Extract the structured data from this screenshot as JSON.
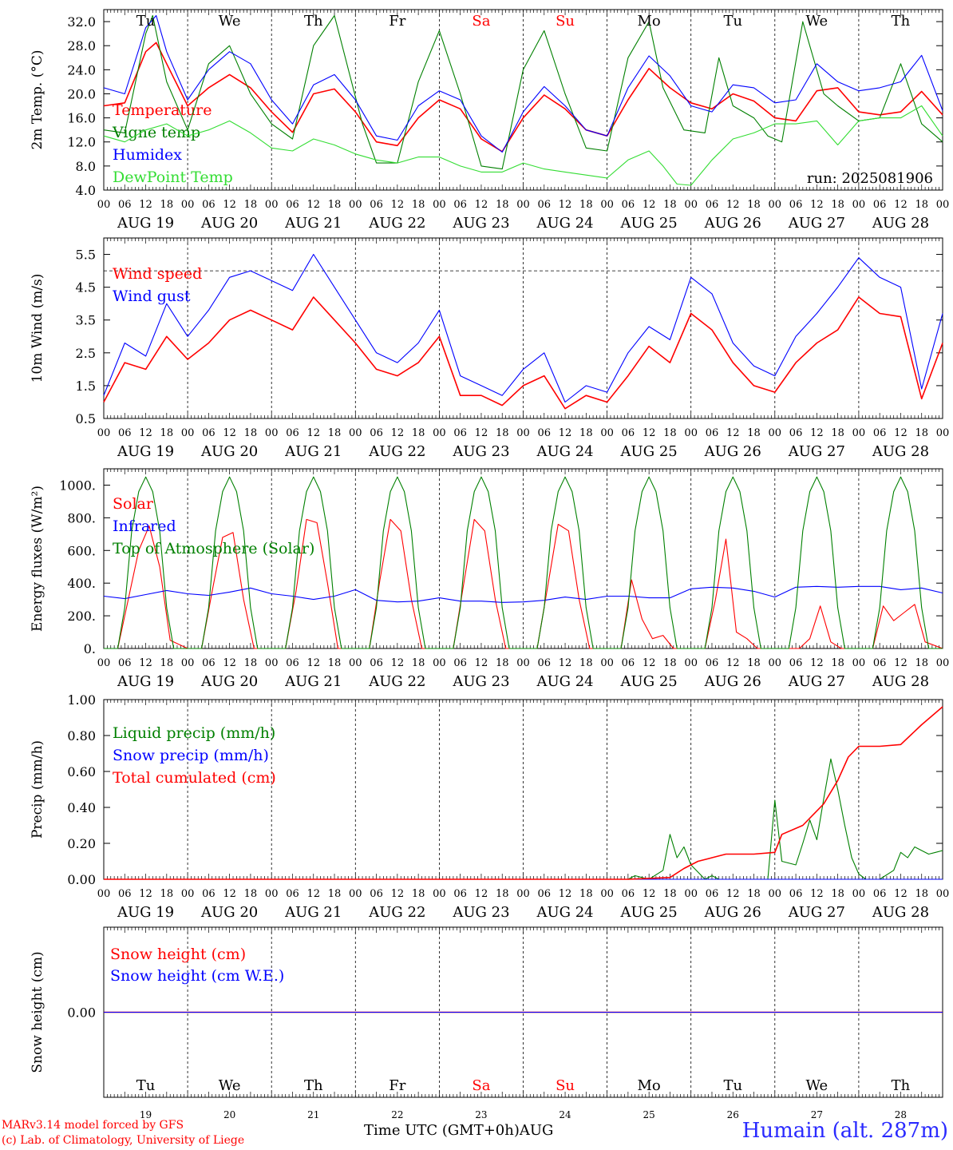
{
  "days": [
    {
      "abbr": "Tu",
      "date": "AUG 19",
      "num": "19",
      "weekend": false
    },
    {
      "abbr": "We",
      "date": "AUG 20",
      "num": "20",
      "weekend": false
    },
    {
      "abbr": "Th",
      "date": "AUG 21",
      "num": "21",
      "weekend": false
    },
    {
      "abbr": "Fr",
      "date": "AUG 22",
      "num": "22",
      "weekend": false
    },
    {
      "abbr": "Sa",
      "date": "AUG 23",
      "num": "23",
      "weekend": true
    },
    {
      "abbr": "Su",
      "date": "AUG 24",
      "num": "24",
      "weekend": true
    },
    {
      "abbr": "Mo",
      "date": "AUG 25",
      "num": "25",
      "weekend": false
    },
    {
      "abbr": "Tu",
      "date": "AUG 26",
      "num": "26",
      "weekend": false
    },
    {
      "abbr": "We",
      "date": "AUG 27",
      "num": "27",
      "weekend": false
    },
    {
      "abbr": "Th",
      "date": "AUG 28",
      "num": "28",
      "weekend": false
    }
  ],
  "hour_ticks": [
    "00",
    "06",
    "12",
    "18"
  ],
  "end_tick": "00",
  "colors": {
    "red": "#ff0000",
    "green": "#008000",
    "blue": "#0000ff",
    "lightgreen": "#33dd33",
    "axis": "#000000"
  },
  "footer": {
    "credit_line1": "MARv3.14 model forced by GFS",
    "credit_line2": "(c) Lab. of Climatology, University of Liege",
    "time_label": "Time UTC (GMT+0h)",
    "month": "AUG",
    "station": "Humain (alt. 287m)"
  },
  "chart_data": [
    {
      "type": "line",
      "ylabel": "2m Temp. (°C)",
      "yticks": [
        "4.0",
        "8.0",
        "12.0",
        "16.0",
        "20.0",
        "24.0",
        "28.0",
        "32.0"
      ],
      "ylim": [
        4,
        34
      ],
      "annotation": "run: 2025081906",
      "day_labels_inside": true,
      "x_unit": "hours since AUG 19 00 UTC",
      "series": [
        {
          "name": "Temperature",
          "color": "red",
          "x": [
            0,
            6,
            12,
            15,
            18,
            24,
            30,
            36,
            42,
            48,
            54,
            60,
            66,
            72,
            78,
            84,
            90,
            96,
            102,
            108,
            114,
            120,
            126,
            132,
            138,
            144,
            150,
            156,
            162,
            168,
            174,
            180,
            186,
            192,
            198,
            204,
            210,
            216,
            222,
            228,
            234,
            240
          ],
          "y": [
            18,
            18.5,
            27,
            28.5,
            25,
            18,
            21,
            23.2,
            21,
            17,
            13.6,
            20,
            20.8,
            17,
            12,
            11.4,
            16,
            19,
            17.5,
            12.5,
            10.4,
            16,
            19.8,
            17.5,
            14,
            13,
            19,
            24.2,
            21,
            18.5,
            17.5,
            20,
            18.8,
            16,
            15.5,
            20.5,
            21,
            17,
            16.5,
            17,
            20.4,
            16.5
          ]
        },
        {
          "name": "Vigne temp",
          "color": "green",
          "x": [
            0,
            6,
            12,
            14,
            18,
            24,
            30,
            36,
            42,
            48,
            54,
            60,
            66,
            70,
            74,
            78,
            84,
            90,
            96,
            102,
            108,
            114,
            120,
            126,
            132,
            138,
            144,
            150,
            156,
            160,
            166,
            172,
            176,
            180,
            186,
            190,
            194,
            200,
            206,
            210,
            216,
            222,
            228,
            234,
            240
          ],
          "y": [
            14,
            13.5,
            30,
            33,
            22,
            14,
            25,
            28,
            20,
            15,
            12.5,
            28,
            33,
            24,
            15,
            8.5,
            8.5,
            22,
            30.5,
            20,
            8,
            7.5,
            24,
            30.5,
            20,
            11,
            10.5,
            26,
            32,
            21,
            14,
            13.5,
            26,
            18,
            16,
            13,
            12,
            32,
            20,
            18,
            15.5,
            16,
            25,
            15,
            12
          ]
        },
        {
          "name": "Humidex",
          "color": "blue",
          "x": [
            0,
            6,
            12,
            15,
            18,
            24,
            30,
            36,
            42,
            48,
            54,
            60,
            66,
            72,
            78,
            84,
            90,
            96,
            102,
            108,
            114,
            120,
            126,
            132,
            138,
            144,
            150,
            156,
            162,
            168,
            174,
            180,
            186,
            192,
            198,
            204,
            210,
            216,
            222,
            228,
            234,
            240
          ],
          "y": [
            21,
            20,
            31,
            33,
            27,
            19,
            24,
            27,
            25,
            19,
            15,
            21.5,
            23.2,
            19,
            13,
            12.3,
            18,
            20.5,
            19,
            13,
            10.3,
            17,
            21.2,
            18,
            14,
            13,
            21,
            26.3,
            23,
            18,
            17,
            21.5,
            21,
            18.5,
            19,
            25,
            22,
            20.5,
            21,
            22,
            26.4,
            17.2
          ]
        },
        {
          "name": "DewPoint Temp",
          "color": "lightgreen",
          "x": [
            0,
            6,
            12,
            18,
            24,
            30,
            36,
            42,
            48,
            54,
            60,
            66,
            72,
            78,
            84,
            90,
            96,
            102,
            108,
            114,
            120,
            126,
            132,
            138,
            144,
            150,
            156,
            160,
            164,
            168,
            174,
            180,
            186,
            192,
            198,
            204,
            210,
            216,
            222,
            228,
            234,
            240
          ],
          "y": [
            13,
            12,
            14,
            15,
            13,
            14,
            15.5,
            13.5,
            11,
            10.5,
            12.5,
            11.5,
            10,
            9,
            8.5,
            9.5,
            9.5,
            8,
            7,
            7,
            8.5,
            7.5,
            7,
            6.5,
            6,
            9,
            10.5,
            8,
            5,
            4.8,
            9,
            12.5,
            13.5,
            15,
            15,
            15.5,
            11.5,
            15.5,
            16,
            16,
            18,
            13
          ]
        }
      ]
    },
    {
      "type": "line",
      "ylabel": "10m Wind (m/s)",
      "yticks": [
        "0.5",
        "1.5",
        "2.5",
        "3.5",
        "4.5",
        "5.5"
      ],
      "ylim": [
        0.5,
        6
      ],
      "reference_line": 5.0,
      "x_unit": "hours since AUG 19 00 UTC",
      "series": [
        {
          "name": "Wind speed",
          "color": "red",
          "x": [
            0,
            6,
            12,
            18,
            24,
            30,
            36,
            42,
            48,
            54,
            60,
            66,
            72,
            78,
            84,
            90,
            96,
            102,
            108,
            114,
            120,
            126,
            132,
            138,
            144,
            150,
            156,
            162,
            168,
            174,
            180,
            186,
            192,
            198,
            204,
            210,
            216,
            222,
            228,
            234,
            240
          ],
          "y": [
            1,
            2.2,
            2,
            3,
            2.3,
            2.8,
            3.5,
            3.8,
            3.5,
            3.2,
            4.2,
            3.5,
            2.8,
            2,
            1.8,
            2.2,
            3,
            1.2,
            1.2,
            0.9,
            1.5,
            1.8,
            0.8,
            1.2,
            1,
            1.8,
            2.7,
            2.2,
            3.7,
            3.2,
            2.2,
            1.5,
            1.3,
            2.2,
            2.8,
            3.2,
            4.2,
            3.7,
            3.6,
            1.1,
            2.8
          ]
        },
        {
          "name": "Wind gust",
          "color": "blue",
          "x": [
            0,
            6,
            12,
            18,
            24,
            30,
            36,
            42,
            48,
            54,
            60,
            66,
            72,
            78,
            84,
            90,
            96,
            102,
            108,
            114,
            120,
            126,
            132,
            138,
            144,
            150,
            156,
            162,
            168,
            174,
            180,
            186,
            192,
            198,
            204,
            210,
            216,
            222,
            228,
            234,
            240
          ],
          "y": [
            1.2,
            2.8,
            2.4,
            4,
            3,
            3.8,
            4.8,
            5,
            4.7,
            4.4,
            5.5,
            4.5,
            3.5,
            2.5,
            2.2,
            2.8,
            3.8,
            1.8,
            1.5,
            1.2,
            2,
            2.5,
            1,
            1.5,
            1.3,
            2.5,
            3.3,
            2.9,
            4.8,
            4.3,
            2.8,
            2.1,
            1.8,
            3,
            3.7,
            4.5,
            5.4,
            4.8,
            4.5,
            1.4,
            3.7
          ]
        }
      ]
    },
    {
      "type": "line",
      "ylabel": "Energy fluxes (W/m²)",
      "yticks": [
        "0.",
        "200.",
        "400.",
        "600.",
        "800.",
        "1000."
      ],
      "ylim": [
        0,
        1100
      ],
      "x_unit": "hours since AUG 19 00 UTC",
      "series": [
        {
          "name": "Solar",
          "color": "red",
          "x": [
            0,
            4,
            7,
            10,
            13,
            16,
            19,
            24,
            28,
            31,
            34,
            37,
            40,
            43,
            48,
            52,
            55,
            58,
            61,
            64,
            67,
            72,
            76,
            79,
            82,
            85,
            88,
            91,
            96,
            100,
            103,
            106,
            109,
            112,
            115,
            120,
            124,
            127,
            130,
            133,
            136,
            139,
            144,
            148,
            151,
            154,
            157,
            160,
            163,
            168,
            172,
            175,
            178,
            181,
            184,
            187,
            192,
            196,
            199,
            202,
            205,
            208,
            211,
            216,
            220,
            223,
            226,
            229,
            232,
            235,
            240
          ],
          "y": [
            0,
            0,
            300,
            600,
            750,
            500,
            50,
            0,
            0,
            350,
            680,
            710,
            300,
            0,
            0,
            0,
            350,
            790,
            770,
            400,
            0,
            0,
            0,
            420,
            790,
            720,
            300,
            0,
            0,
            0,
            400,
            790,
            720,
            300,
            0,
            0,
            0,
            380,
            760,
            720,
            300,
            0,
            0,
            0,
            420,
            180,
            60,
            80,
            0,
            0,
            0,
            300,
            670,
            100,
            60,
            0,
            0,
            0,
            0,
            60,
            260,
            40,
            0,
            0,
            0,
            260,
            170,
            220,
            270,
            40,
            0
          ]
        },
        {
          "name": "Infrared",
          "color": "blue",
          "x": [
            0,
            6,
            12,
            18,
            24,
            30,
            36,
            42,
            48,
            54,
            60,
            66,
            72,
            78,
            84,
            90,
            96,
            102,
            108,
            114,
            120,
            126,
            132,
            138,
            144,
            150,
            156,
            162,
            168,
            174,
            180,
            186,
            192,
            198,
            204,
            210,
            216,
            222,
            228,
            234,
            240
          ],
          "y": [
            320,
            305,
            330,
            355,
            335,
            325,
            345,
            370,
            335,
            320,
            300,
            320,
            360,
            295,
            285,
            290,
            310,
            290,
            290,
            282,
            285,
            295,
            315,
            300,
            320,
            320,
            310,
            310,
            365,
            375,
            370,
            350,
            315,
            375,
            380,
            375,
            380,
            380,
            360,
            370,
            340
          ]
        },
        {
          "name": "Top of Atmosphere (Solar)",
          "color": "green",
          "x": [
            0,
            4,
            6,
            8,
            10,
            12,
            14,
            16,
            18,
            20,
            24
          ],
          "y": [
            0,
            0,
            250,
            720,
            960,
            1050,
            960,
            720,
            250,
            0,
            0
          ],
          "repeat_daily": true
        }
      ]
    },
    {
      "type": "line",
      "ylabel": "Precip (mm/h)",
      "yticks": [
        "0.00",
        "0.20",
        "0.40",
        "0.60",
        "0.80",
        "1.00"
      ],
      "ylim": [
        0,
        1
      ],
      "x_unit": "hours since AUG 19 00 UTC",
      "series": [
        {
          "name": "Liquid precip (mm/h)",
          "color": "green",
          "x": [
            0,
            150,
            152,
            156,
            160,
            162,
            164,
            166,
            168,
            170,
            172,
            174,
            176,
            178,
            180,
            182,
            186,
            190,
            192,
            194,
            198,
            200,
            202,
            204,
            206,
            208,
            210,
            212,
            214,
            216,
            218,
            222,
            226,
            228,
            230,
            232,
            234,
            236,
            238,
            240
          ],
          "y": [
            0,
            0,
            0.02,
            0,
            0.05,
            0.25,
            0.12,
            0.18,
            0.08,
            0.04,
            0,
            0.02,
            0,
            0,
            0,
            0,
            0,
            0,
            0.44,
            0.1,
            0.08,
            0.2,
            0.33,
            0.22,
            0.45,
            0.67,
            0.5,
            0.3,
            0.12,
            0.03,
            0,
            0,
            0.05,
            0.15,
            0.12,
            0.18,
            0.16,
            0.14,
            0.15,
            0.16
          ]
        },
        {
          "name": "Snow precip (mm/h)",
          "color": "blue",
          "x": [
            0,
            240
          ],
          "y": [
            0,
            0
          ]
        },
        {
          "name": "Total cumulated (cm)",
          "color": "red",
          "x": [
            0,
            150,
            162,
            166,
            170,
            174,
            178,
            186,
            192,
            194,
            200,
            206,
            210,
            213,
            216,
            222,
            228,
            234,
            240
          ],
          "y": [
            0,
            0,
            0.01,
            0.06,
            0.1,
            0.12,
            0.14,
            0.14,
            0.15,
            0.25,
            0.3,
            0.42,
            0.55,
            0.68,
            0.74,
            0.74,
            0.75,
            0.86,
            0.96
          ]
        }
      ]
    },
    {
      "type": "line",
      "ylabel": "Snow height (cm)",
      "yticks": [
        "0.00"
      ],
      "ylim": [
        -1,
        1
      ],
      "day_labels_inside": true,
      "x_unit": "hours since AUG 19 00 UTC",
      "series": [
        {
          "name": "Snow height (cm)",
          "color": "red",
          "x": [
            0,
            240
          ],
          "y": [
            0,
            0
          ]
        },
        {
          "name": "Snow height (cm W.E.)",
          "color": "blue",
          "x": [
            0,
            240
          ],
          "y": [
            0,
            0
          ]
        }
      ]
    }
  ]
}
